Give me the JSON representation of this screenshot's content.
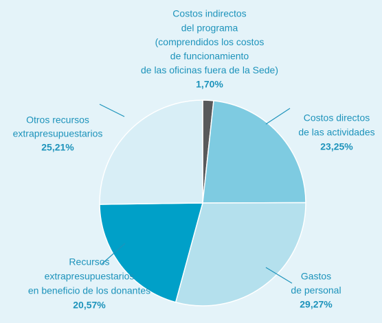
{
  "chart_data": {
    "type": "pie",
    "categories": [
      [
        "Costos indirectos",
        "del programa",
        "(comprendidos los costos",
        "de funcionamiento",
        "de las oficinas fuera de la Sede)"
      ],
      [
        "Costos directos",
        "de las actividades"
      ],
      [
        "Gastos",
        "de personal"
      ],
      [
        "Recursos",
        "extrapresupuestarios",
        "en beneficio de los donantes"
      ],
      [
        "Otros recursos",
        "extrapresupuestarios"
      ]
    ],
    "values": [
      1.7,
      23.25,
      29.27,
      20.57,
      25.21
    ],
    "value_labels": [
      "1,70%",
      "23,25%",
      "29,27%",
      "20,57%",
      "25,21%"
    ],
    "colors": [
      "#58595b",
      "#7ecbe1",
      "#b4e0ed",
      "#00a0c8",
      "#d8eef6"
    ]
  }
}
